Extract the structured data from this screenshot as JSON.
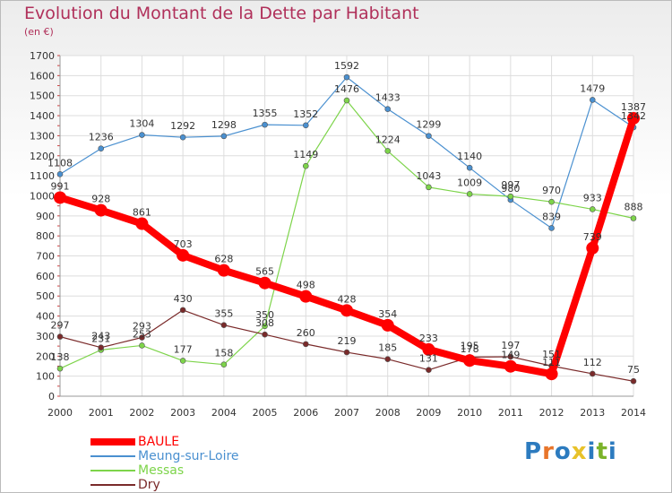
{
  "title": "Evolution du Montant de la Dette par Habitant",
  "unit": "(en €)",
  "logo": {
    "letters": [
      "P",
      "r",
      "o",
      "x",
      "i",
      "t",
      "i"
    ],
    "colors": [
      "#2c7bbf",
      "#e8752a",
      "#2c7bbf",
      "#e8c22a",
      "#2c7bbf",
      "#7bb32a",
      "#2c7bbf"
    ]
  },
  "chart_data": {
    "type": "line",
    "title": "Evolution du Montant de la Dette par Habitant",
    "ylabel": "(en €)",
    "xlabel": "",
    "ylim": [
      0,
      1700
    ],
    "y_ticks": [
      0,
      100,
      200,
      300,
      400,
      500,
      600,
      700,
      800,
      900,
      1000,
      1100,
      1200,
      1300,
      1400,
      1500,
      1600,
      1700
    ],
    "x": [
      "2000",
      "2001",
      "2002",
      "2003",
      "2004",
      "2005",
      "2006",
      "2007",
      "2008",
      "2009",
      "2010",
      "2011",
      "2012",
      "2013",
      "2014"
    ],
    "grid": true,
    "legend_position": "bottom-left",
    "series": [
      {
        "name": "BAULE",
        "color": "#ff0000",
        "width": 8,
        "marker": 7,
        "values": [
          991,
          928,
          861,
          703,
          628,
          565,
          498,
          428,
          354,
          233,
          178,
          149,
          111,
          739,
          1387
        ],
        "labels": [
          "991",
          "928",
          "861",
          "703",
          "628",
          "565",
          "498",
          "428",
          "354",
          "233",
          "178",
          "149",
          "111",
          "739",
          "1387"
        ]
      },
      {
        "name": "Meung-sur-Loire",
        "color": "#4a90d0",
        "width": 1.2,
        "marker": 3,
        "values": [
          1108,
          1236,
          1304,
          1292,
          1298,
          1355,
          1352,
          1592,
          1433,
          1299,
          1140,
          980,
          839,
          1479,
          1342
        ],
        "labels": [
          "1108",
          "1236",
          "1304",
          "1292",
          "1298",
          "1355",
          "1352",
          "1592",
          "1433",
          "1299",
          "1140",
          "980",
          "839",
          "1479",
          "1342"
        ]
      },
      {
        "name": "Messas",
        "color": "#7dd44a",
        "width": 1.2,
        "marker": 3,
        "values": [
          138,
          231,
          253,
          177,
          158,
          350,
          1149,
          1476,
          1224,
          1043,
          1009,
          997,
          970,
          933,
          888
        ],
        "labels": [
          "138",
          "231",
          "253",
          "177",
          "158",
          "350",
          "1149",
          "1476",
          "1224",
          "1043",
          "1009",
          "997",
          "970",
          "933",
          "888"
        ]
      },
      {
        "name": "Dry",
        "color": "#7a2a2a",
        "width": 1.2,
        "marker": 3,
        "values": [
          297,
          243,
          293,
          430,
          355,
          308,
          260,
          219,
          185,
          131,
          195,
          197,
          151,
          112,
          75
        ],
        "labels": [
          "297",
          "243",
          "293",
          "430",
          "355",
          "308",
          "260",
          "219",
          "185",
          "131",
          "195",
          "197",
          "151",
          "112",
          "75"
        ]
      }
    ]
  }
}
